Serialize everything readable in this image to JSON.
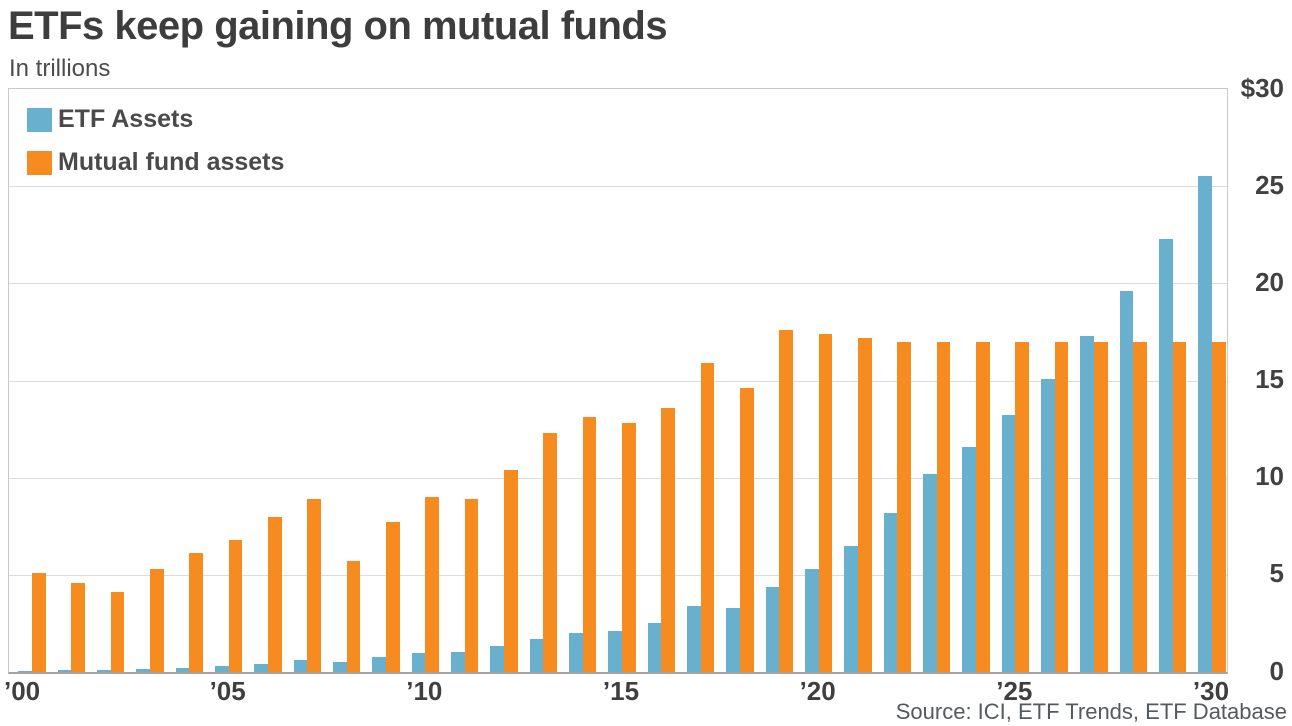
{
  "header": {
    "title": "ETFs keep gaining on mutual funds",
    "subtitle": "In trillions"
  },
  "legend": {
    "items": [
      {
        "id": "etf",
        "label": "ETF Assets",
        "color": "#69afce"
      },
      {
        "id": "mutual-fund",
        "label": "Mutual fund assets",
        "color": "#f68b1f"
      }
    ]
  },
  "footer": {
    "source": "Source: ICI, ETF Trends, ETF Database"
  },
  "colors": {
    "etf_blue": "#69afce",
    "mutual_fund_orange": "#f68b1f",
    "gridline": "#dcdcdc",
    "axis_text": "#414141",
    "title_text": "#3d3d3d"
  },
  "y_axis": {
    "ticks": [
      {
        "label": "$30",
        "value": 30
      },
      {
        "label": "25",
        "value": 25
      },
      {
        "label": "20",
        "value": 20
      },
      {
        "label": "15",
        "value": 15
      },
      {
        "label": "10",
        "value": 10
      },
      {
        "label": "5",
        "value": 5
      },
      {
        "label": "0",
        "value": 0
      }
    ]
  },
  "x_axis": {
    "ticks": [
      {
        "label": "’00",
        "year": 2000
      },
      {
        "label": "’05",
        "year": 2005
      },
      {
        "label": "’10",
        "year": 2010
      },
      {
        "label": "’15",
        "year": 2015
      },
      {
        "label": "’20",
        "year": 2020
      },
      {
        "label": "’25",
        "year": 2025
      },
      {
        "label": "’30",
        "year": 2030
      }
    ]
  },
  "chart_data": {
    "type": "bar",
    "title": "ETFs keep gaining on mutual funds",
    "subtitle": "In trillions",
    "units": "USD trillions",
    "x": [
      2000,
      2001,
      2002,
      2003,
      2004,
      2005,
      2006,
      2007,
      2008,
      2009,
      2010,
      2011,
      2012,
      2013,
      2014,
      2015,
      2016,
      2017,
      2018,
      2019,
      2020,
      2021,
      2022,
      2023,
      2024,
      2025,
      2026,
      2027,
      2028,
      2029,
      2030
    ],
    "series": [
      {
        "name": "ETF Assets",
        "color": "#69afce",
        "values": [
          0.07,
          0.08,
          0.1,
          0.15,
          0.23,
          0.3,
          0.42,
          0.61,
          0.53,
          0.78,
          0.99,
          1.05,
          1.34,
          1.68,
          2.0,
          2.1,
          2.5,
          3.4,
          3.3,
          4.4,
          5.3,
          6.5,
          8.2,
          10.2,
          11.6,
          13.2,
          15.1,
          17.3,
          19.6,
          22.3,
          25.5
        ]
      },
      {
        "name": "Mutual fund assets",
        "color": "#f68b1f",
        "values": [
          5.1,
          4.6,
          4.1,
          5.3,
          6.1,
          6.8,
          8.0,
          8.9,
          5.7,
          7.7,
          9.0,
          8.9,
          10.4,
          12.3,
          13.1,
          12.8,
          13.6,
          15.9,
          14.6,
          17.6,
          17.4,
          17.2,
          17.0,
          17.0,
          17.0,
          17.0,
          17.0,
          17.0,
          17.0,
          17.0,
          17.0
        ]
      }
    ],
    "ylim": [
      0,
      30
    ],
    "ytick_step": 5,
    "grid": true,
    "legend_position": "top-left",
    "source": "Source: ICI, ETF Trends, ETF Database"
  }
}
